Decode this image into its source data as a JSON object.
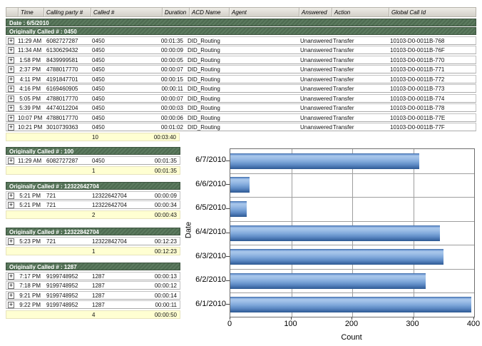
{
  "colors": {
    "group_header_green": "#4e6b51",
    "group_header_green_light": "#5c7b5f",
    "summary_yellow": "#ffffd2",
    "bar_blue": "#5b8cc8"
  },
  "table": {
    "headers": [
      "",
      "Time",
      "Calling party #",
      "Called #",
      "Duration",
      "ACD Name",
      "Agent",
      "Answered",
      "Action",
      "Global Call Id"
    ],
    "date_header": "Date : 6/5/2010",
    "main_group": {
      "title": "Originally Called # : 0450",
      "rows": [
        {
          "time": "11:29 AM",
          "calling_party": "6082727287",
          "called": "0450",
          "duration": "00:01:35",
          "acd_name": "DID_Routing",
          "agent": "",
          "answered": "Unanswered",
          "action": "Transfer",
          "global_call_id": "10103-D0-0011B-768"
        },
        {
          "time": "11:34 AM",
          "calling_party": "6130629432",
          "called": "0450",
          "duration": "00:00:09",
          "acd_name": "DID_Routing",
          "agent": "",
          "answered": "Unanswered",
          "action": "Transfer",
          "global_call_id": "10103-D0-0011B-76F"
        },
        {
          "time": "1:58 PM",
          "calling_party": "8439999581",
          "called": "0450",
          "duration": "00:00:05",
          "acd_name": "DID_Routing",
          "agent": "",
          "answered": "Unanswered",
          "action": "Transfer",
          "global_call_id": "10103-D0-0011B-770"
        },
        {
          "time": "2:37 PM",
          "calling_party": "4788017770",
          "called": "0450",
          "duration": "00:00:07",
          "acd_name": "DID_Routing",
          "agent": "",
          "answered": "Unanswered",
          "action": "Transfer",
          "global_call_id": "10103-D0-0011B-771"
        },
        {
          "time": "4:11 PM",
          "calling_party": "4191847701",
          "called": "0450",
          "duration": "00:00:15",
          "acd_name": "DID_Routing",
          "agent": "",
          "answered": "Unanswered",
          "action": "Transfer",
          "global_call_id": "10103-D0-0011B-772"
        },
        {
          "time": "4:16 PM",
          "calling_party": "6169460905",
          "called": "0450",
          "duration": "00:00:11",
          "acd_name": "DID_Routing",
          "agent": "",
          "answered": "Unanswered",
          "action": "Transfer",
          "global_call_id": "10103-D0-0011B-773"
        },
        {
          "time": "5:05 PM",
          "calling_party": "4788017770",
          "called": "0450",
          "duration": "00:00:07",
          "acd_name": "DID_Routing",
          "agent": "",
          "answered": "Unanswered",
          "action": "Transfer",
          "global_call_id": "10103-D0-0011B-774"
        },
        {
          "time": "5:39 PM",
          "calling_party": "4474012204",
          "called": "0450",
          "duration": "00:00:03",
          "acd_name": "DID_Routing",
          "agent": "",
          "answered": "Unanswered",
          "action": "Transfer",
          "global_call_id": "10103-D0-0011B-778"
        },
        {
          "time": "10:07 PM",
          "calling_party": "4788017770",
          "called": "0450",
          "duration": "00:00:06",
          "acd_name": "DID_Routing",
          "agent": "",
          "answered": "Unanswered",
          "action": "Transfer",
          "global_call_id": "10103-D0-0011B-77E"
        },
        {
          "time": "10:21 PM",
          "calling_party": "3010739363",
          "called": "0450",
          "duration": "00:01:02",
          "acd_name": "DID_Routing",
          "agent": "",
          "answered": "Unanswered",
          "action": "Transfer",
          "global_call_id": "10103-D0-0011B-77F"
        }
      ],
      "summary": {
        "count": "10",
        "total_duration": "00:03:40"
      }
    },
    "groups": [
      {
        "title": "Originally Called # : 100",
        "rows": [
          {
            "time": "11:29 AM",
            "calling_party": "6082727287",
            "called": "0450",
            "duration": "00:01:35"
          }
        ],
        "summary": {
          "count": "1",
          "total_duration": "00:01:35"
        }
      },
      {
        "title": "Originally Called # : 12322642704",
        "rows": [
          {
            "time": "5:21 PM",
            "calling_party": "721",
            "called": "12322642704",
            "duration": "00:00:09"
          },
          {
            "time": "5:21 PM",
            "calling_party": "721",
            "called": "12322642704",
            "duration": "00:00:34"
          }
        ],
        "summary": {
          "count": "2",
          "total_duration": "00:00:43"
        }
      },
      {
        "title": "Originally Called # : 12322842704",
        "rows": [
          {
            "time": "5:23 PM",
            "calling_party": "721",
            "called": "12322842704",
            "duration": "00:12:23"
          }
        ],
        "summary": {
          "count": "1",
          "total_duration": "00:12:23"
        }
      },
      {
        "title": "Originally Called # : 1287",
        "rows": [
          {
            "time": "7:17 PM",
            "calling_party": "9199748952",
            "called": "1287",
            "duration": "00:00:13"
          },
          {
            "time": "7:18 PM",
            "calling_party": "9199748952",
            "called": "1287",
            "duration": "00:00:12"
          },
          {
            "time": "9:21 PM",
            "calling_party": "9199748952",
            "called": "1287",
            "duration": "00:00:14"
          },
          {
            "time": "9:22 PM",
            "calling_party": "9199748952",
            "called": "1287",
            "duration": "00:00:11"
          }
        ],
        "summary": {
          "count": "4",
          "total_duration": "00:00:50"
        }
      }
    ]
  },
  "chart_data": {
    "type": "bar",
    "orientation": "horizontal",
    "categories": [
      "6/7/2010",
      "6/6/2010",
      "6/5/2010",
      "6/4/2010",
      "6/3/2010",
      "6/2/2010",
      "6/1/2010"
    ],
    "values": [
      310,
      32,
      27,
      344,
      350,
      320,
      395
    ],
    "xlabel": "Count",
    "ylabel": "Date",
    "xlim": [
      0,
      400
    ],
    "xticks": [
      0,
      100,
      200,
      300,
      400
    ],
    "grid": true,
    "legend": false,
    "bar_color": "#5b8cc8"
  }
}
